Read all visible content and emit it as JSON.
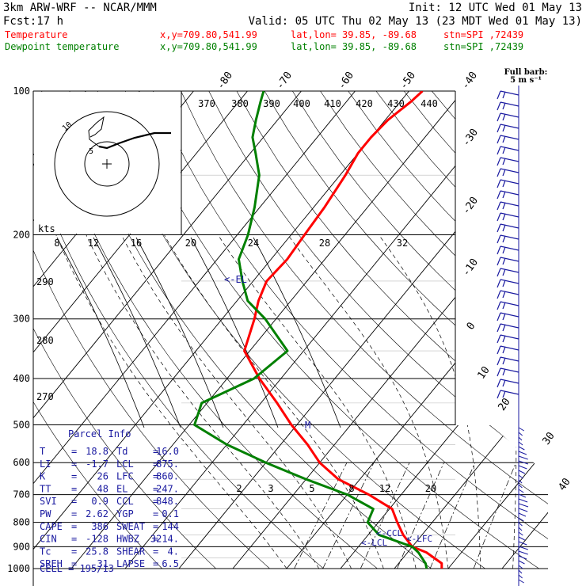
{
  "header": {
    "model": "3km ARW-WRF -- NCAR/MMM",
    "init": "Init: 12 UTC Wed 01 May 13",
    "fcst_label": "Fcst:",
    "fcst_value": "17 h",
    "valid": "Valid: 05 UTC Thu 02 May 13 (23 MDT Wed 01 May 13)",
    "temp_line": {
      "name": "Temperature",
      "xy": "x,y=709.80,541.99",
      "latlon": "lat,lon= 39.85, -89.68",
      "stn": "stn=SPI ,72439"
    },
    "dew_line": {
      "name": "Dewpoint temperature",
      "xy": "x,y=709.80,541.99",
      "latlon": "lat,lon= 39.85, -89.68",
      "stn": "stn=SPI ,72439"
    },
    "barb_title": "Full barb:",
    "barb_sub": "5 m s⁻¹"
  },
  "colors": {
    "temperature": "#ff0000",
    "dewpoint": "#008000",
    "annot": "#1a1aa0",
    "grid": "#000000"
  },
  "labels": {
    "pressure": [
      "100",
      "200",
      "300",
      "400",
      "500",
      "600",
      "700",
      "800",
      "900",
      "1000"
    ],
    "isotherm_top": [
      "-80",
      "-70",
      "-60",
      "-50",
      "-40"
    ],
    "isotherm_right": [
      "-30",
      "-20",
      "-10",
      "0",
      "10",
      "20",
      "30",
      "40"
    ],
    "theta_top": [
      "370",
      "380",
      "390",
      "400",
      "410",
      "420",
      "430",
      "440"
    ],
    "theta_left": [
      "290",
      "280",
      "270"
    ],
    "mixing": [
      "2",
      "3",
      "5",
      "8",
      "12",
      "20"
    ],
    "wind_speed": [
      "8",
      "12",
      "16",
      "20",
      "24",
      "28",
      "32"
    ],
    "kts": "kts",
    "hodo_rings": [
      "5",
      "10"
    ],
    "el": "EL",
    "lfc": "LFC",
    "ccl": "CCL",
    "lcl": "LCL",
    "m": "M"
  },
  "parcel": {
    "title": "Parcel Info",
    "rows": [
      [
        "T",
        "18.8",
        "Td",
        "16.0"
      ],
      [
        "LI",
        "-1.7",
        "LCL",
        "875."
      ],
      [
        "K",
        "26",
        "LFC",
        "860."
      ],
      [
        "TT",
        "48",
        "EL",
        "247."
      ],
      [
        "SVI",
        "0.9",
        "CCL",
        "848."
      ],
      [
        "PW",
        "2.62",
        "YGP",
        "0.1"
      ],
      [
        "CAPE",
        "386",
        "SWEAT",
        "144"
      ],
      [
        "CIN",
        "-128",
        "HWBZ",
        "3214."
      ],
      [
        "Tc",
        "25.8",
        "SHEAR",
        "4."
      ],
      [
        "SREH",
        "31",
        "LAPSE",
        "6.5"
      ]
    ],
    "cell": "CELL = 195/13"
  },
  "chart_data": {
    "type": "line",
    "title": "",
    "xlabel": "",
    "ylabel": "",
    "ylim": [
      1000,
      100
    ],
    "y_scale": "log",
    "grid": true,
    "series": [
      {
        "name": "Temperature",
        "color": "#ff0000",
        "x": [
          18.8,
          18.0,
          13.5,
          10.0,
          6.5,
          3.5,
          0.5,
          -6.0,
          -14.0,
          -20.0,
          -25.0,
          -31.0,
          -37.0,
          -44.0,
          -51.0,
          -54.0,
          -56.0,
          -57.5,
          -57.0,
          -57.5,
          -58.0,
          -59.0,
          -60.0,
          -60.0,
          -59.5,
          -58.0,
          -57.5
        ],
        "y": [
          1000,
          975,
          925,
          900,
          850,
          800,
          750,
          700,
          650,
          600,
          550,
          500,
          450,
          400,
          350,
          300,
          275,
          250,
          225,
          200,
          175,
          150,
          135,
          125,
          115,
          105,
          100
        ]
      },
      {
        "name": "Dewpoint temperature",
        "color": "#008000",
        "x": [
          16.0,
          15.0,
          12.0,
          10.0,
          2.0,
          -2.0,
          -3.0,
          -10.0,
          -20.0,
          -30.0,
          -40.0,
          -49.0,
          -51.0,
          -45.0,
          -43.0,
          -52.0,
          -58.0,
          -62.0,
          -66.0,
          -68.0,
          -71.0,
          -75.0,
          -79.0,
          -82.0,
          -84.0,
          -86.0,
          -87.0
        ],
        "y": [
          1000,
          975,
          925,
          900,
          850,
          800,
          750,
          700,
          650,
          600,
          550,
          500,
          450,
          400,
          350,
          300,
          275,
          250,
          225,
          200,
          175,
          150,
          135,
          125,
          115,
          105,
          100
        ]
      }
    ]
  }
}
